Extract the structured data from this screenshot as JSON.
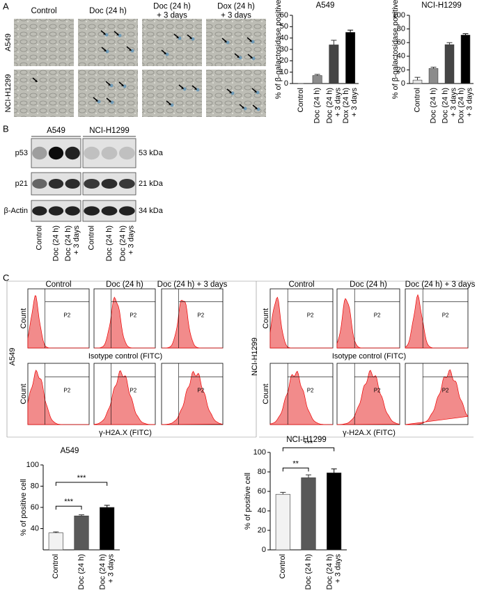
{
  "panel_labels": [
    "A",
    "B",
    "C"
  ],
  "panel_a": {
    "columns": [
      "Control",
      "Doc (24 h)",
      "Doc (24 h)\n+ 3 days",
      "Dox (24 h)\n+ 3 days"
    ],
    "rows": [
      "A549",
      "NCI-H1299"
    ]
  },
  "panel_b": {
    "cell_lines": [
      "A549",
      "NCI-H1299"
    ],
    "proteins": [
      "p53",
      "p21",
      "β-Actin"
    ],
    "sizes": [
      "53 kDa",
      "21 kDa",
      "34 kDa"
    ],
    "lanes": [
      "Control",
      "Doc (24 h)",
      "Doc (24 h)\n+ 3 days"
    ]
  },
  "panel_c": {
    "columns": [
      "Control",
      "Doc (24 h)",
      "Doc (24 h) + 3 days"
    ],
    "rows": [
      "A549",
      "NCI-H1299"
    ],
    "y_label": "Count",
    "x_labels": [
      "Isotype control (FITC)",
      "γ-H2A.X (FITC)"
    ],
    "gate": "P2"
  },
  "chart_data": [
    {
      "type": "bar",
      "title": "A549",
      "y_label": "% of β-galactosidase positive",
      "categories": [
        "Control",
        "Doc (24 h)",
        "Doc (24 h)\n+ 3 days",
        "Dox (24 h)\n+ 3 days"
      ],
      "values": [
        0,
        7,
        34,
        45
      ],
      "errors": [
        0,
        1,
        4,
        2
      ],
      "colors": [
        "#e6e6e6",
        "#8c8c8c",
        "#454545",
        "#000000"
      ],
      "ylim": [
        0,
        60
      ],
      "yticks": [
        0,
        10,
        20,
        30,
        40,
        50,
        60
      ]
    },
    {
      "type": "bar",
      "title": "NCI-H1299",
      "y_label": "% of β-galactosidase positive",
      "categories": [
        "Control",
        "Doc (24 h)",
        "Doc (24 h)\n+ 3 days",
        "Dox (24 h)\n+ 3 days"
      ],
      "values": [
        5,
        22,
        57,
        71
      ],
      "errors": [
        4,
        2,
        3,
        2
      ],
      "colors": [
        "#e6e6e6",
        "#8c8c8c",
        "#454545",
        "#000000"
      ],
      "ylim": [
        0,
        100
      ],
      "yticks": [
        0,
        20,
        40,
        60,
        80,
        100
      ]
    },
    {
      "type": "bar",
      "title": "A549",
      "y_label": "% of positive cell",
      "categories": [
        "Control",
        "Doc (24 h)",
        "Doc (24 h)\n+ 3 days"
      ],
      "values": [
        36,
        52,
        60
      ],
      "errors": [
        1,
        1,
        2
      ],
      "colors": [
        "#f2f2f2",
        "#595959",
        "#000000"
      ],
      "ylim": [
        20,
        100
      ],
      "yticks": [
        40,
        60,
        80,
        100
      ],
      "annotations": [
        "***",
        "***"
      ]
    },
    {
      "type": "bar",
      "title": "NCI-H1299",
      "y_label": "% of positive cell",
      "categories": [
        "Control",
        "Doc (24 h)",
        "Doc (24 h)\n+ 3 days"
      ],
      "values": [
        57,
        74,
        79
      ],
      "errors": [
        2,
        3,
        4
      ],
      "colors": [
        "#f2f2f2",
        "#595959",
        "#000000"
      ],
      "ylim": [
        0,
        100
      ],
      "yticks": [
        0,
        20,
        40,
        60,
        80,
        100
      ],
      "annotations": [
        "**",
        "***"
      ]
    }
  ]
}
